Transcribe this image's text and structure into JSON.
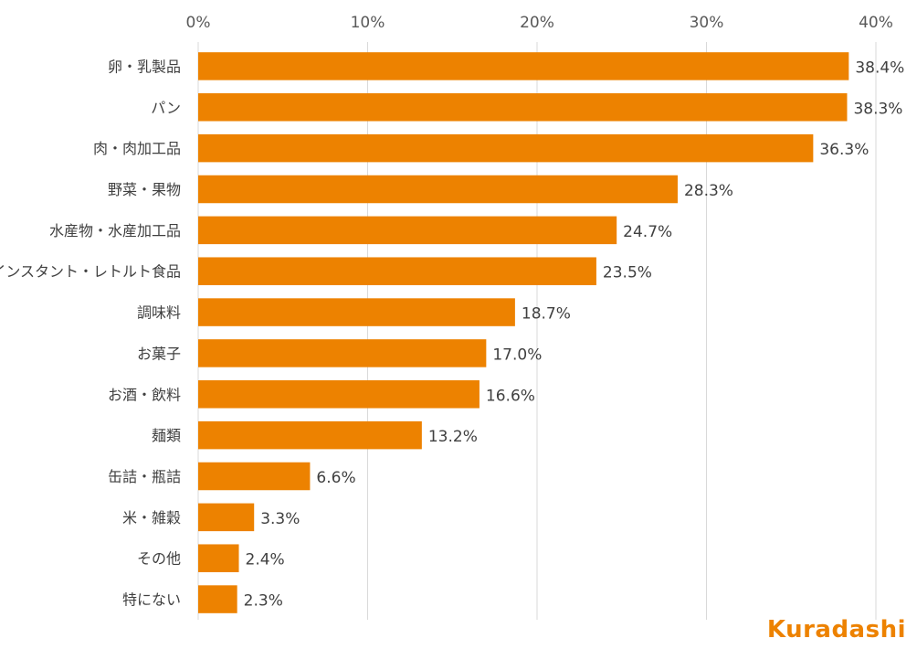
{
  "chart_data": {
    "type": "bar",
    "orientation": "horizontal",
    "categories": [
      "卵・乳製品",
      "パン",
      "肉・肉加工品",
      "野菜・果物",
      "水産物・水産加工品",
      "インスタント・レトルト食品",
      "調味料",
      "お菓子",
      "お酒・飲料",
      "麺類",
      "缶詰・瓶詰",
      "米・雑穀",
      "その他",
      "特にない"
    ],
    "values": [
      38.4,
      38.3,
      36.3,
      28.3,
      24.7,
      23.5,
      18.7,
      17.0,
      16.6,
      13.2,
      6.6,
      3.3,
      2.4,
      2.3
    ],
    "value_labels": [
      "38.4%",
      "38.3%",
      "36.3%",
      "28.3%",
      "24.7%",
      "23.5%",
      "18.7%",
      "17.0%",
      "16.6%",
      "13.2%",
      "6.6%",
      "3.3%",
      "2.4%",
      "2.3%"
    ],
    "xlim": [
      0,
      40
    ],
    "x_ticks": [
      "0%",
      "10%",
      "20%",
      "30%",
      "40%"
    ],
    "x_tick_values": [
      0,
      10,
      20,
      30,
      40
    ],
    "x_axis_position": "top",
    "grid": true,
    "legend": "none",
    "bar_color": "#ED8200",
    "grid_color": "#D9D9D9"
  },
  "logo": {
    "text": "Kuradashi",
    "color": "#ED8200"
  }
}
